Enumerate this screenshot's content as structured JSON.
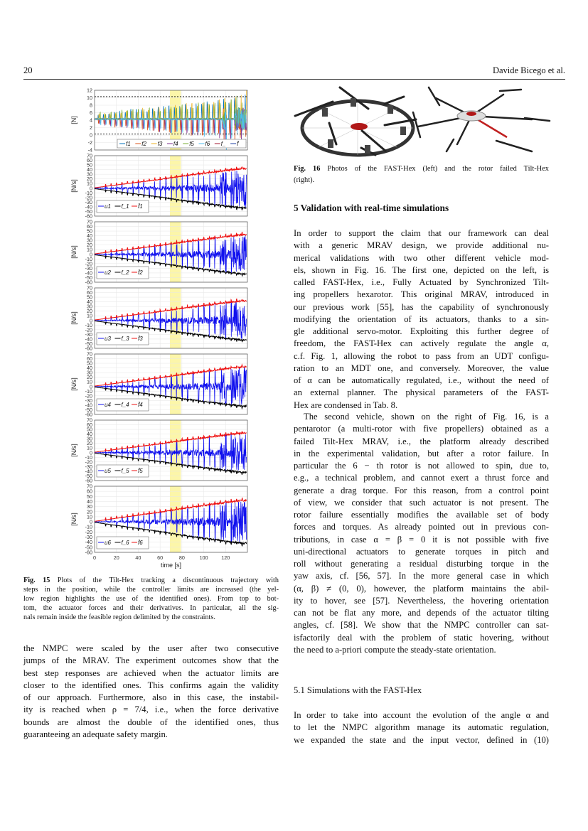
{
  "header": {
    "page_number": "20",
    "authors": "Davide Bicego et al."
  },
  "figure15": {
    "caption_label": "Fig. 15",
    "caption_lines": [
      " Plots of the Tilt-Hex tracking a discontinuous trajectory with",
      "steps in the position, while the controller limits are increased (the yel-",
      "low region highlights the use of the identified ones). From top to bot-",
      "tom, the actuator forces and their derivatives. In particular, all the sig-",
      "nals remain inside the feasible region delimited by the constraints."
    ]
  },
  "chart_data": [
    {
      "type": "line",
      "ylabel": "[N]",
      "xlim": [
        0,
        140
      ],
      "ylim": [
        -4,
        12
      ],
      "yticks": [
        "12",
        "10",
        "8",
        "6",
        "4",
        "2",
        "0",
        "-2",
        "-4"
      ],
      "grid": true,
      "highlight_region_x": [
        69,
        79
      ],
      "highlight_color": "#fbf59a",
      "limits": {
        "lower": 0.3,
        "upper": 10.3
      },
      "legend_placement": "bottom-right",
      "series": [
        {
          "name": "f1",
          "color": "#0072BD"
        },
        {
          "name": "f2",
          "color": "#D95319"
        },
        {
          "name": "f3",
          "color": "#EDB120"
        },
        {
          "name": "f4",
          "color": "#7E2F8E"
        },
        {
          "name": "f5",
          "color": "#77AC30"
        },
        {
          "name": "f6",
          "color": "#4DBEEE"
        },
        {
          "name": "f_",
          "color": "#A2142F"
        },
        {
          "name": "f̄",
          "color": "#1f3fa0"
        }
      ],
      "hover_value": 4.3,
      "spike_period_s": 5,
      "spike_amplitude_range": [
        1.5,
        6
      ]
    },
    {
      "type": "line",
      "ylabel": "[N/s]",
      "xlim": [
        0,
        140
      ],
      "ylim": [
        -60,
        70
      ],
      "series": [
        {
          "name": "u1",
          "color": "#1010ee"
        },
        {
          "name": "f_1",
          "color": "#000000"
        },
        {
          "name": "f̄1",
          "color": "#ee1010"
        }
      ],
      "bound_at_t": {
        "t": [
          0,
          20,
          40,
          60,
          80,
          100,
          120,
          135
        ],
        "upper": [
          1,
          7,
          13,
          19,
          26,
          32,
          38,
          42
        ]
      }
    },
    {
      "type": "line",
      "ylabel": "[N/s]",
      "xlim": [
        0,
        140
      ],
      "ylim": [
        -60,
        70
      ],
      "series": [
        {
          "name": "u2",
          "color": "#1010ee"
        },
        {
          "name": "f_2",
          "color": "#000000"
        },
        {
          "name": "f̄2",
          "color": "#ee1010"
        }
      ],
      "bound_at_t": {
        "t": [
          0,
          20,
          40,
          60,
          80,
          100,
          120,
          135
        ],
        "upper": [
          1,
          7,
          13,
          19,
          26,
          32,
          38,
          42
        ]
      }
    },
    {
      "type": "line",
      "ylabel": "[N/s]",
      "xlim": [
        0,
        140
      ],
      "ylim": [
        -60,
        70
      ],
      "series": [
        {
          "name": "u3",
          "color": "#1010ee"
        },
        {
          "name": "f_3",
          "color": "#000000"
        },
        {
          "name": "f̄3",
          "color": "#ee1010"
        }
      ],
      "bound_at_t": {
        "t": [
          0,
          20,
          40,
          60,
          80,
          100,
          120,
          135
        ],
        "upper": [
          1,
          7,
          13,
          19,
          26,
          32,
          38,
          42
        ]
      }
    },
    {
      "type": "line",
      "ylabel": "[N/s]",
      "xlim": [
        0,
        140
      ],
      "ylim": [
        -60,
        70
      ],
      "series": [
        {
          "name": "u4",
          "color": "#1010ee"
        },
        {
          "name": "f_4",
          "color": "#000000"
        },
        {
          "name": "f̄4",
          "color": "#ee1010"
        }
      ],
      "bound_at_t": {
        "t": [
          0,
          20,
          40,
          60,
          80,
          100,
          120,
          135
        ],
        "upper": [
          1,
          7,
          13,
          19,
          26,
          32,
          38,
          42
        ]
      }
    },
    {
      "type": "line",
      "ylabel": "[N/s]",
      "xlim": [
        0,
        140
      ],
      "ylim": [
        -60,
        70
      ],
      "series": [
        {
          "name": "u5",
          "color": "#1010ee"
        },
        {
          "name": "f_5",
          "color": "#000000"
        },
        {
          "name": "f̄5",
          "color": "#ee1010"
        }
      ],
      "bound_at_t": {
        "t": [
          0,
          20,
          40,
          60,
          80,
          100,
          120,
          135
        ],
        "upper": [
          1,
          7,
          13,
          19,
          26,
          32,
          38,
          42
        ]
      }
    },
    {
      "type": "line",
      "ylabel": "[N/s]",
      "xlabel": "time [s]",
      "xlim": [
        0,
        140
      ],
      "ylim": [
        -60,
        70
      ],
      "xticks": [
        "0",
        "20",
        "40",
        "60",
        "80",
        "100",
        "120"
      ],
      "series": [
        {
          "name": "u6",
          "color": "#1010ee"
        },
        {
          "name": "f_6",
          "color": "#000000"
        },
        {
          "name": "f̄6",
          "color": "#ee1010"
        }
      ],
      "bound_at_t": {
        "t": [
          0,
          20,
          40,
          60,
          80,
          100,
          120,
          135
        ],
        "upper": [
          1,
          7,
          13,
          19,
          26,
          32,
          38,
          42
        ]
      }
    }
  ],
  "derivative_yticks": [
    "70",
    "60",
    "50",
    "40",
    "30",
    "20",
    "10",
    "0",
    "-10",
    "-20",
    "-30",
    "-40",
    "-50",
    "-60"
  ],
  "figure16": {
    "caption_label": "Fig. 16",
    "caption_lines": [
      " Photos of the FAST-Hex (left) and the rotor failed Tilt-Hex",
      "(right)."
    ]
  },
  "section5": {
    "heading": "5 Validation with real-time simulations",
    "para1": [
      "In order to support the claim that our framework can deal",
      "with a generic MRAV design, we provide additional nu-",
      "merical validations with two other different vehicle mod-",
      "els, shown in Fig. 16. The first one, depicted on the left, is",
      "called FAST-Hex, i.e., Fully Actuated by Synchronized Tilt-",
      "ing propellers hexarotor. This original MRAV, introduced in",
      "our previous work [55], has the capability of synchronously",
      "modifying the orientation of its actuators, thanks to a sin-",
      "gle additional servo-motor. Exploiting this further degree of",
      "freedom, the FAST-Hex can actively regulate the angle α,",
      "c.f. Fig. 1, allowing the robot to pass from an UDT configu-",
      "ration to an MDT one, and conversely. Moreover, the value",
      "of α can be automatically regulated, i.e., without the need of",
      "an external planner. The physical parameters of the FAST-",
      "Hex are condensed in Tab. 8."
    ],
    "para2": [
      "The second vehicle, shown on the right of Fig. 16, is a",
      "pentarotor (a multi-rotor with five propellers) obtained as a",
      "failed Tilt-Hex MRAV, i.e., the platform already described",
      "in the experimental validation, but after a rotor failure. In",
      "particular the 6 − th rotor is not allowed to spin, due to,",
      "e.g., a technical problem, and cannot exert a thrust force and",
      "generate a drag torque. For this reason, from a control point",
      "of view, we consider that such actuator is not present. The",
      "rotor failure essentially modifies the available set of body",
      "forces and torques. As already pointed out in previous con-",
      "tributions, in case α = β = 0 it is not possible with five",
      "uni-directional actuators to generate torques in pitch and",
      "roll without generating a residual disturbing torque in the",
      "yaw axis, cf. [56, 57]. In the more general case in which",
      "(α, β) ≠ (0, 0), however, the platform maintains the abil-",
      "ity to hover, see [57]. Nevertheless, the hovering orientation",
      "can not be flat any more, and depends of the actuator tilting",
      "angles, cf. [58]. We show that the NMPC controller can sat-",
      "isfactorily deal with the problem of static hovering, without",
      "the need to a-priori compute the steady-state orientation."
    ]
  },
  "section5_1": {
    "heading": "5.1 Simulations with the FAST-Hex",
    "para1": [
      "In order to take into account the evolution of the angle α and",
      "to let the NMPC algorithm manage its automatic regulation,",
      "we expanded the state and the input vector, defined in (10)"
    ]
  },
  "left_text": {
    "para": [
      "the NMPC were scaled by the user after two consecutive",
      "jumps of the MRAV. The experiment outcomes show that the",
      "best step responses are achieved when the actuator limits are",
      "closer to the identified ones. This confirms again the validity",
      "of our approach. Furthermore, also in this case, the instabil-",
      "ity is reached when ρ = 7/4, i.e., when the force derivative",
      "bounds are almost the double of the identified ones, thus",
      "guaranteeing an adequate safety margin."
    ]
  }
}
